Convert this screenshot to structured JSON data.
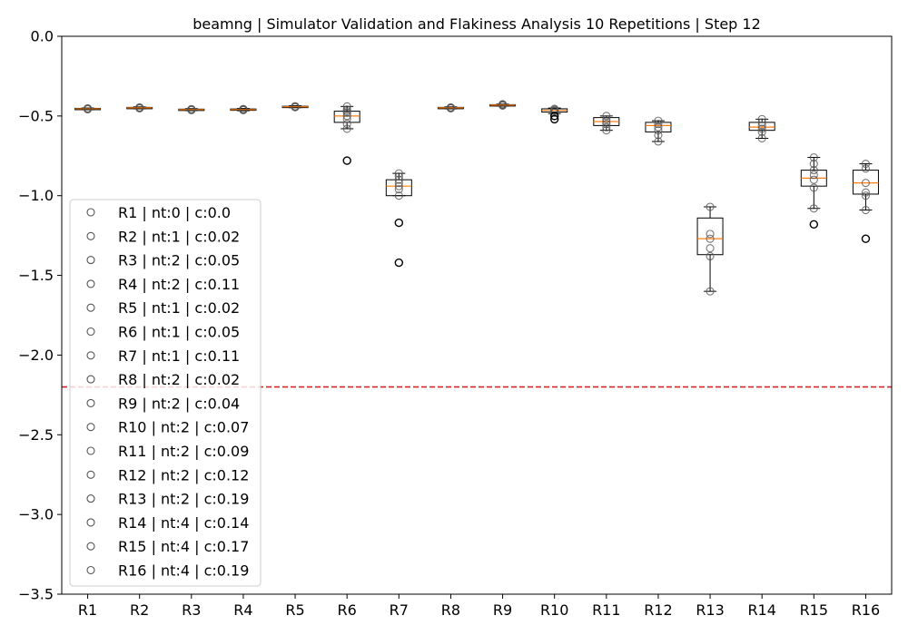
{
  "chart_data": {
    "type": "box",
    "title": "beamng | Simulator Validation and Flakiness Analysis 10 Repetitions | Step 12",
    "xlabel": "",
    "ylabel": "",
    "ylim": [
      -3.5,
      0.0
    ],
    "yticks": [
      "0.0",
      "−0.5",
      "−1.0",
      "−1.5",
      "−2.0",
      "−2.5",
      "−3.0",
      "−3.5"
    ],
    "ytick_values": [
      0.0,
      -0.5,
      -1.0,
      -1.5,
      -2.0,
      -2.5,
      -3.0,
      -3.5
    ],
    "categories": [
      "R1",
      "R2",
      "R3",
      "R4",
      "R5",
      "R6",
      "R7",
      "R8",
      "R9",
      "R10",
      "R11",
      "R12",
      "R13",
      "R14",
      "R15",
      "R16"
    ],
    "threshold": -2.2,
    "grid": false,
    "legend_placement": "lower-left",
    "colors": {
      "box": "#000000",
      "median": "#ff7f0e",
      "threshold": "#d62728",
      "point": "#555555"
    },
    "boxes": [
      {
        "name": "R1",
        "legend": "R1 | nt:0 | c:0.0",
        "q1": -0.458,
        "median": -0.455,
        "q3": -0.452,
        "whislo": -0.46,
        "whishi": -0.45,
        "fliers": [],
        "points": [
          -0.455,
          -0.452,
          -0.458,
          -0.456,
          -0.454
        ]
      },
      {
        "name": "R2",
        "legend": "R2 | nt:1 | c:0.02",
        "q1": -0.452,
        "median": -0.449,
        "q3": -0.446,
        "whislo": -0.455,
        "whishi": -0.443,
        "fliers": [],
        "points": [
          -0.449,
          -0.446,
          -0.452,
          -0.448,
          -0.45
        ]
      },
      {
        "name": "R3",
        "legend": "R3 | nt:2 | c:0.05",
        "q1": -0.463,
        "median": -0.46,
        "q3": -0.457,
        "whislo": -0.466,
        "whishi": -0.454,
        "fliers": [],
        "points": [
          -0.46,
          -0.457,
          -0.463,
          -0.459,
          -0.461
        ]
      },
      {
        "name": "R4",
        "legend": "R4 | nt:2 | c:0.11",
        "q1": -0.463,
        "median": -0.46,
        "q3": -0.456,
        "whislo": -0.467,
        "whishi": -0.453,
        "fliers": [],
        "points": [
          -0.46,
          -0.456,
          -0.463,
          -0.458,
          -0.462
        ]
      },
      {
        "name": "R5",
        "legend": "R5 | nt:1 | c:0.02",
        "q1": -0.445,
        "median": -0.442,
        "q3": -0.439,
        "whislo": -0.448,
        "whishi": -0.436,
        "fliers": [],
        "points": [
          -0.442,
          -0.439,
          -0.445,
          -0.441,
          -0.443
        ]
      },
      {
        "name": "R6",
        "legend": "R6 | nt:1 | c:0.05",
        "q1": -0.54,
        "median": -0.5,
        "q3": -0.47,
        "whislo": -0.58,
        "whishi": -0.44,
        "fliers": [
          -0.78
        ],
        "points": [
          -0.44,
          -0.46,
          -0.48,
          -0.5,
          -0.52,
          -0.55,
          -0.58,
          -0.47
        ]
      },
      {
        "name": "R7",
        "legend": "R7 | nt:1 | c:0.11",
        "q1": -1.0,
        "median": -0.94,
        "q3": -0.9,
        "whislo": -1.0,
        "whishi": -0.86,
        "fliers": [
          -1.17,
          -1.42
        ],
        "points": [
          -0.86,
          -0.88,
          -0.9,
          -0.92,
          -0.94,
          -0.96,
          -1.0
        ]
      },
      {
        "name": "R8",
        "legend": "R8 | nt:2 | c:0.02",
        "q1": -0.452,
        "median": -0.449,
        "q3": -0.446,
        "whislo": -0.455,
        "whishi": -0.443,
        "fliers": [],
        "points": [
          -0.449,
          -0.446,
          -0.452,
          -0.448,
          -0.45
        ]
      },
      {
        "name": "R9",
        "legend": "R9 | nt:2 | c:0.04",
        "q1": -0.435,
        "median": -0.432,
        "q3": -0.429,
        "whislo": -0.438,
        "whishi": -0.426,
        "fliers": [],
        "points": [
          -0.432,
          -0.429,
          -0.435,
          -0.431,
          -0.426
        ]
      },
      {
        "name": "R10",
        "legend": "R10 | nt:2 | c:0.07",
        "q1": -0.475,
        "median": -0.465,
        "q3": -0.455,
        "whislo": -0.485,
        "whishi": -0.45,
        "fliers": [
          -0.5,
          -0.52
        ],
        "points": [
          -0.455,
          -0.46,
          -0.465,
          -0.47,
          -0.48,
          -0.5
        ]
      },
      {
        "name": "R11",
        "legend": "R11 | nt:2 | c:0.09",
        "q1": -0.56,
        "median": -0.535,
        "q3": -0.51,
        "whislo": -0.59,
        "whishi": -0.5,
        "fliers": [],
        "points": [
          -0.5,
          -0.52,
          -0.535,
          -0.55,
          -0.57,
          -0.59
        ]
      },
      {
        "name": "R12",
        "legend": "R12 | nt:2 | c:0.12",
        "q1": -0.6,
        "median": -0.56,
        "q3": -0.54,
        "whislo": -0.66,
        "whishi": -0.53,
        "fliers": [],
        "points": [
          -0.53,
          -0.55,
          -0.57,
          -0.59,
          -0.62,
          -0.66
        ]
      },
      {
        "name": "R13",
        "legend": "R13 | nt:2 | c:0.19",
        "q1": -1.37,
        "median": -1.27,
        "q3": -1.14,
        "whislo": -1.6,
        "whishi": -1.07,
        "fliers": [],
        "points": [
          -1.07,
          -1.24,
          -1.27,
          -1.33,
          -1.38,
          -1.6
        ]
      },
      {
        "name": "R14",
        "legend": "R14 | nt:4 | c:0.14",
        "q1": -0.59,
        "median": -0.57,
        "q3": -0.54,
        "whislo": -0.64,
        "whishi": -0.52,
        "fliers": [],
        "points": [
          -0.52,
          -0.54,
          -0.56,
          -0.58,
          -0.6,
          -0.64
        ]
      },
      {
        "name": "R15",
        "legend": "R15 | nt:4 | c:0.17",
        "q1": -0.94,
        "median": -0.89,
        "q3": -0.84,
        "whislo": -1.08,
        "whishi": -0.76,
        "fliers": [
          -1.18
        ],
        "points": [
          -0.76,
          -0.8,
          -0.84,
          -0.87,
          -0.9,
          -0.95,
          -1.08
        ]
      },
      {
        "name": "R16",
        "legend": "R16 | nt:4 | c:0.19",
        "q1": -0.99,
        "median": -0.92,
        "q3": -0.84,
        "whislo": -1.09,
        "whishi": -0.8,
        "fliers": [
          -1.27
        ],
        "points": [
          -0.8,
          -0.83,
          -0.92,
          -0.98,
          -1.0,
          -1.09
        ]
      }
    ]
  }
}
